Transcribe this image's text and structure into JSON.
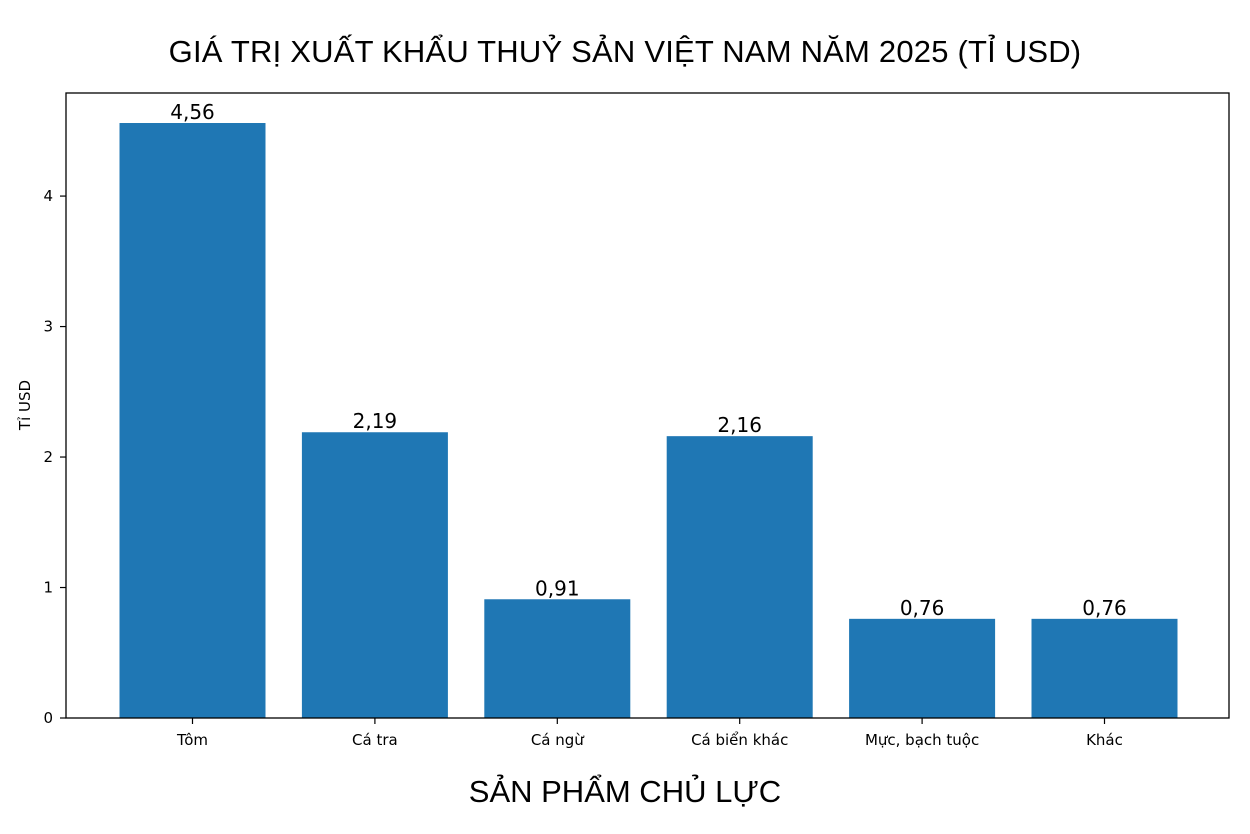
{
  "chart_data": {
    "type": "bar",
    "title": "GIÁ TRỊ XUẤT KHẨU THUỶ SẢN VIỆT NAM NĂM 2025 (TỈ USD)",
    "xlabel": "SẢN PHẨM CHỦ LỰC",
    "ylabel": "Tỉ USD",
    "categories": [
      "Tôm",
      "Cá tra",
      "Cá ngừ",
      "Cá biển khác",
      "Mực, bạch tuộc",
      "Khác"
    ],
    "values": [
      4.56,
      2.19,
      0.91,
      2.16,
      0.76,
      0.76
    ],
    "data_labels": [
      "4,56",
      "2,19",
      "0,91",
      "2,16",
      "0,76",
      "0,76"
    ],
    "yticks": [
      0,
      1,
      2,
      3,
      4
    ],
    "ylim": [
      0,
      4.79
    ],
    "bar_color": "#1f77b4",
    "grid": false
  }
}
